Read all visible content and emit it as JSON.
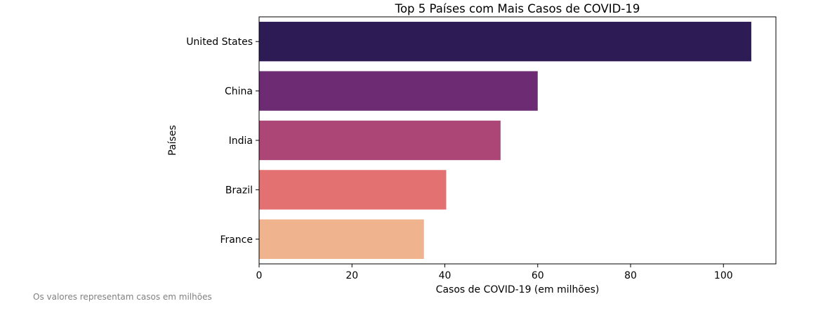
{
  "chart_data": {
    "type": "bar",
    "orientation": "horizontal",
    "title": "Top 5 Países com Mais Casos de COVID-19",
    "xlabel": "Casos de COVID-19 (em milhões)",
    "ylabel": "Países",
    "categories": [
      "United States",
      "China",
      "India",
      "Brazil",
      "France"
    ],
    "values": [
      106,
      60,
      52,
      40.3,
      35.5
    ],
    "xlim": [
      0,
      111.3
    ],
    "xticks": [
      0,
      20,
      40,
      60,
      80,
      100
    ],
    "grid": false,
    "colors": [
      "#2d1b55",
      "#6c2b72",
      "#ac4676",
      "#e37171",
      "#efb48e"
    ]
  },
  "footnote": "Os valores representam casos em milhões"
}
